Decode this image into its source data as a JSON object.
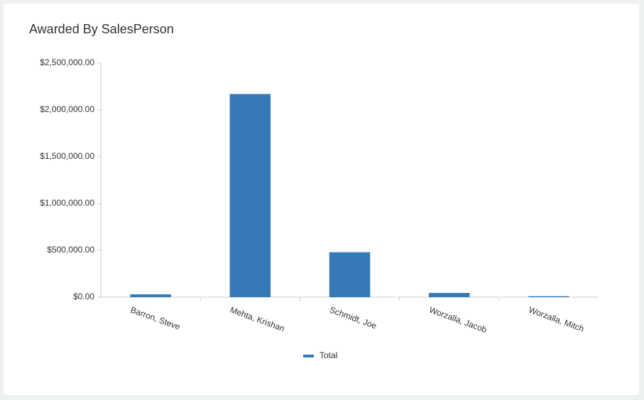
{
  "chart_data": {
    "type": "bar",
    "title": "Awarded By SalesPerson",
    "categories": [
      "Barron, Steve",
      "Mehta, Krishan",
      "Schmidt, Joe",
      "Worzalla, Jacob",
      "Worzalla, Mitch"
    ],
    "series": [
      {
        "name": "Total",
        "color": "#3579b6",
        "values": [
          30000,
          2170000,
          480000,
          45000,
          10000
        ]
      }
    ],
    "ylim": [
      0,
      2500000
    ],
    "yticks": [
      {
        "value": 0,
        "label": "$0.00"
      },
      {
        "value": 500000,
        "label": "$500,000.00"
      },
      {
        "value": 1000000,
        "label": "$1,000,000.00"
      },
      {
        "value": 1500000,
        "label": "$1,500,000.00"
      },
      {
        "value": 2000000,
        "label": "$2,000,000.00"
      },
      {
        "value": 2500000,
        "label": "$2,500,000.00"
      }
    ],
    "grid": false,
    "legend": "bottom"
  }
}
